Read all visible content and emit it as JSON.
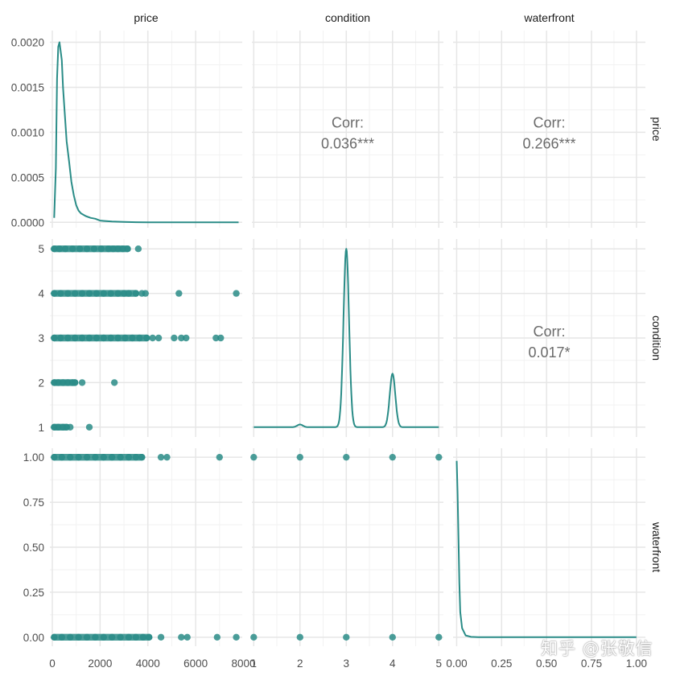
{
  "chart_data": {
    "type": "scatter-matrix",
    "variables": [
      "price",
      "condition",
      "waterfront"
    ],
    "series_color": "#2a8c87",
    "panels": {
      "price_density": {
        "type": "line",
        "xlim": [
          -100,
          7950
        ],
        "ylim": [
          -6e-05,
          0.00213
        ],
        "y_ticks": [
          0,
          0.0005,
          0.001,
          0.0015,
          0.002
        ],
        "y_tick_labels": [
          "0.0000",
          "0.0005",
          "0.0010",
          "0.0015",
          "0.0020"
        ],
        "x": [
          80,
          150,
          200,
          250,
          300,
          350,
          400,
          450,
          500,
          600,
          700,
          800,
          900,
          1000,
          1100,
          1200,
          1400,
          1600,
          1800,
          2000,
          2200,
          2500,
          3000,
          3500,
          4000,
          5000,
          6000,
          7000,
          7800
        ],
        "y": [
          5e-05,
          0.0006,
          0.0016,
          0.00195,
          0.002,
          0.0019,
          0.0018,
          0.0015,
          0.0013,
          0.0009,
          0.00068,
          0.00045,
          0.0003,
          0.00019,
          0.00013,
          0.0001,
          7e-05,
          5e-05,
          4e-05,
          2e-05,
          1.5e-05,
          1e-05,
          5e-06,
          2e-06,
          0,
          0,
          0,
          0,
          0
        ]
      },
      "condition_density": {
        "type": "line",
        "xlim": [
          0.96,
          5.1
        ],
        "peaks": [
          {
            "mean": 2.0,
            "sd": 0.06,
            "height": 0.06
          },
          {
            "mean": 3.0,
            "sd": 0.06,
            "height": 5.0
          },
          {
            "mean": 4.0,
            "sd": 0.06,
            "height": 2.2
          },
          {
            "mean": 5.0,
            "sd": 0.06,
            "height": 1.0
          }
        ],
        "baseline": 1.0
      },
      "waterfront_density": {
        "type": "line",
        "xlim": [
          -0.02,
          1.05
        ],
        "x": [
          0.0,
          0.005,
          0.01,
          0.015,
          0.02,
          0.03,
          0.05,
          0.08,
          0.12,
          0.2,
          1.0
        ],
        "y": [
          0.98,
          0.8,
          0.55,
          0.3,
          0.14,
          0.05,
          0.01,
          0.002,
          0.0005,
          0,
          0
        ]
      },
      "condition_vs_price": {
        "type": "scatter",
        "points": [
          {
            "x": 80,
            "y": 5
          },
          {
            "x": 300,
            "y": 5
          },
          {
            "x": 550,
            "y": 5
          },
          {
            "x": 850,
            "y": 5
          },
          {
            "x": 1150,
            "y": 5
          },
          {
            "x": 1450,
            "y": 5
          },
          {
            "x": 1750,
            "y": 5
          },
          {
            "x": 2050,
            "y": 5
          },
          {
            "x": 2350,
            "y": 5
          },
          {
            "x": 2550,
            "y": 5
          },
          {
            "x": 2750,
            "y": 5
          },
          {
            "x": 2950,
            "y": 5
          },
          {
            "x": 3150,
            "y": 5
          },
          {
            "x": 3600,
            "y": 5
          },
          {
            "x": 80,
            "y": 4
          },
          {
            "x": 350,
            "y": 4
          },
          {
            "x": 650,
            "y": 4
          },
          {
            "x": 950,
            "y": 4
          },
          {
            "x": 1250,
            "y": 4
          },
          {
            "x": 1550,
            "y": 4
          },
          {
            "x": 1850,
            "y": 4
          },
          {
            "x": 2150,
            "y": 4
          },
          {
            "x": 2450,
            "y": 4
          },
          {
            "x": 2750,
            "y": 4
          },
          {
            "x": 3000,
            "y": 4
          },
          {
            "x": 3200,
            "y": 4
          },
          {
            "x": 3500,
            "y": 4
          },
          {
            "x": 3750,
            "y": 4
          },
          {
            "x": 3900,
            "y": 4
          },
          {
            "x": 5300,
            "y": 4
          },
          {
            "x": 7700,
            "y": 4
          },
          {
            "x": 80,
            "y": 3
          },
          {
            "x": 350,
            "y": 3
          },
          {
            "x": 650,
            "y": 3
          },
          {
            "x": 950,
            "y": 3
          },
          {
            "x": 1250,
            "y": 3
          },
          {
            "x": 1550,
            "y": 3
          },
          {
            "x": 1850,
            "y": 3
          },
          {
            "x": 2150,
            "y": 3
          },
          {
            "x": 2450,
            "y": 3
          },
          {
            "x": 2750,
            "y": 3
          },
          {
            "x": 3050,
            "y": 3
          },
          {
            "x": 3350,
            "y": 3
          },
          {
            "x": 3650,
            "y": 3
          },
          {
            "x": 3950,
            "y": 3
          },
          {
            "x": 4200,
            "y": 3
          },
          {
            "x": 4450,
            "y": 3
          },
          {
            "x": 5100,
            "y": 3
          },
          {
            "x": 5400,
            "y": 3
          },
          {
            "x": 5600,
            "y": 3
          },
          {
            "x": 6850,
            "y": 3
          },
          {
            "x": 7050,
            "y": 3
          },
          {
            "x": 80,
            "y": 2
          },
          {
            "x": 250,
            "y": 2
          },
          {
            "x": 450,
            "y": 2
          },
          {
            "x": 650,
            "y": 2
          },
          {
            "x": 850,
            "y": 2
          },
          {
            "x": 950,
            "y": 2
          },
          {
            "x": 1250,
            "y": 2
          },
          {
            "x": 2600,
            "y": 2
          },
          {
            "x": 80,
            "y": 1
          },
          {
            "x": 250,
            "y": 1
          },
          {
            "x": 450,
            "y": 1
          },
          {
            "x": 600,
            "y": 1
          },
          {
            "x": 750,
            "y": 1
          },
          {
            "x": 1550,
            "y": 1
          }
        ]
      },
      "waterfront_vs_price": {
        "type": "scatter",
        "points": [
          {
            "x": 80,
            "y": 1
          },
          {
            "x": 400,
            "y": 1
          },
          {
            "x": 750,
            "y": 1
          },
          {
            "x": 1100,
            "y": 1
          },
          {
            "x": 1450,
            "y": 1
          },
          {
            "x": 1800,
            "y": 1
          },
          {
            "x": 2150,
            "y": 1
          },
          {
            "x": 2500,
            "y": 1
          },
          {
            "x": 2850,
            "y": 1
          },
          {
            "x": 3200,
            "y": 1
          },
          {
            "x": 3500,
            "y": 1
          },
          {
            "x": 3750,
            "y": 1
          },
          {
            "x": 4550,
            "y": 1
          },
          {
            "x": 4800,
            "y": 1
          },
          {
            "x": 7000,
            "y": 1
          },
          {
            "x": 80,
            "y": 0
          },
          {
            "x": 400,
            "y": 0
          },
          {
            "x": 750,
            "y": 0
          },
          {
            "x": 1100,
            "y": 0
          },
          {
            "x": 1450,
            "y": 0
          },
          {
            "x": 1800,
            "y": 0
          },
          {
            "x": 2150,
            "y": 0
          },
          {
            "x": 2500,
            "y": 0
          },
          {
            "x": 2850,
            "y": 0
          },
          {
            "x": 3200,
            "y": 0
          },
          {
            "x": 3500,
            "y": 0
          },
          {
            "x": 3800,
            "y": 0
          },
          {
            "x": 4050,
            "y": 0
          },
          {
            "x": 4550,
            "y": 0
          },
          {
            "x": 5400,
            "y": 0
          },
          {
            "x": 5650,
            "y": 0
          },
          {
            "x": 6900,
            "y": 0
          },
          {
            "x": 7700,
            "y": 0
          }
        ]
      },
      "waterfront_vs_condition": {
        "type": "scatter",
        "points": [
          {
            "x": 1,
            "y": 1
          },
          {
            "x": 2,
            "y": 1
          },
          {
            "x": 3,
            "y": 1
          },
          {
            "x": 4,
            "y": 1
          },
          {
            "x": 5,
            "y": 1
          },
          {
            "x": 1,
            "y": 0
          },
          {
            "x": 2,
            "y": 0
          },
          {
            "x": 3,
            "y": 0
          },
          {
            "x": 4,
            "y": 0
          },
          {
            "x": 5,
            "y": 0
          }
        ]
      },
      "corr_price_condition": {
        "label": "Corr:",
        "value": "0.036***"
      },
      "corr_price_waterfront": {
        "label": "Corr:",
        "value": "0.266***"
      },
      "corr_condition_waterfront": {
        "label": "Corr:",
        "value": "0.017*"
      }
    },
    "axes": {
      "price": {
        "lim": [
          -100,
          7950
        ],
        "ticks": [
          0,
          2000,
          4000,
          6000,
          8000
        ],
        "tick_labels": [
          "0",
          "2000",
          "4000",
          "6000",
          "8000"
        ]
      },
      "condition": {
        "lim": [
          0.78,
          5.22
        ],
        "ticks": [
          1,
          2,
          3,
          4,
          5
        ],
        "tick_labels": [
          "1",
          "2",
          "3",
          "4",
          "5"
        ],
        "x_lim": [
          0.96,
          5.1
        ]
      },
      "waterfront": {
        "lim": [
          -0.05,
          1.05
        ],
        "ticks": [
          0,
          0.25,
          0.5,
          0.75,
          1
        ],
        "tick_labels": [
          "0.00",
          "0.25",
          "0.50",
          "0.75",
          "1.00"
        ],
        "x_lim": [
          -0.02,
          1.05
        ]
      }
    }
  },
  "watermark": "知乎 @张敬信"
}
